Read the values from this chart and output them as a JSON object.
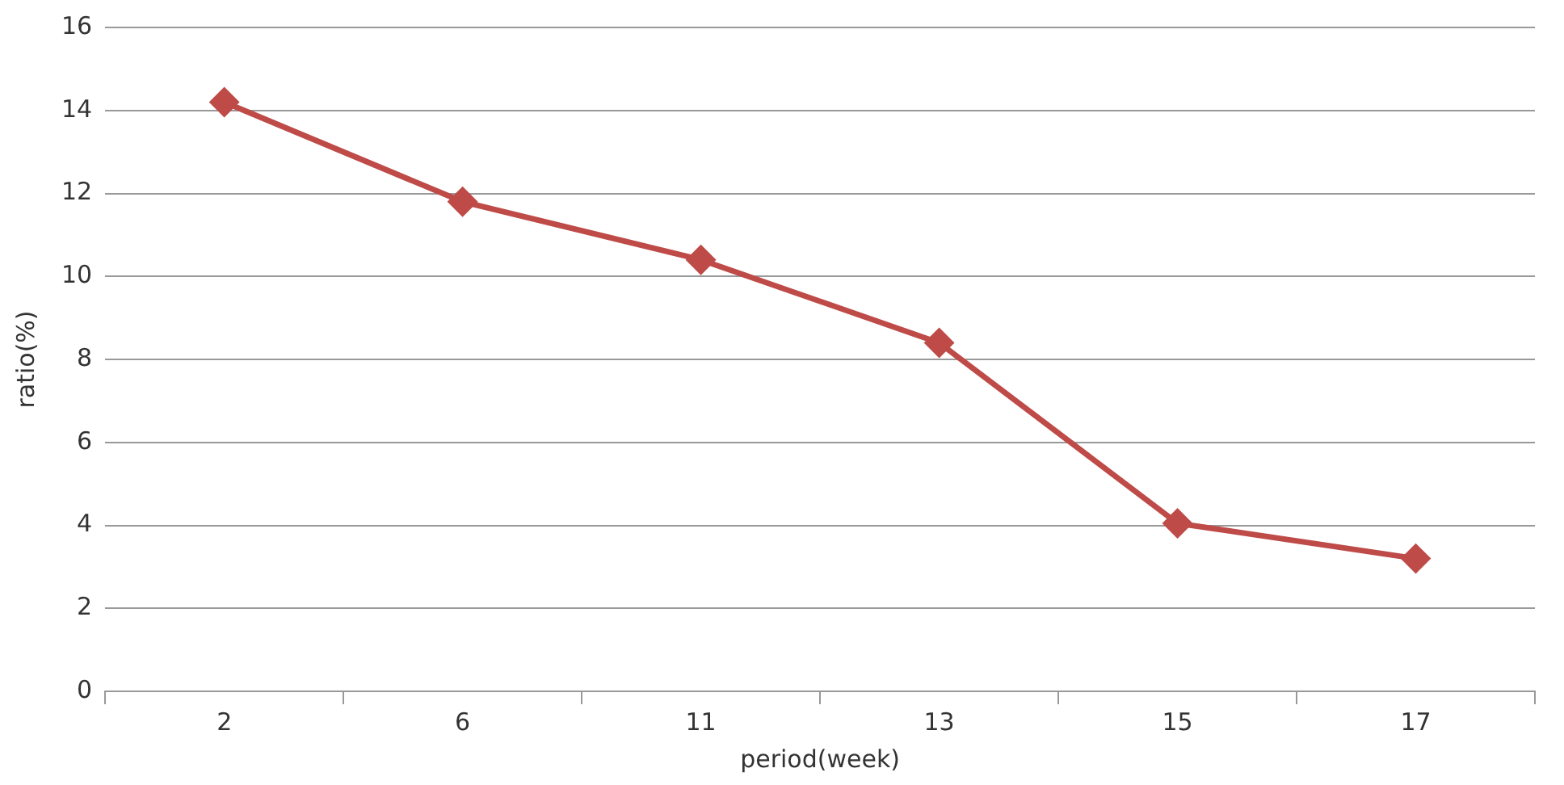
{
  "chart_data": {
    "type": "line",
    "xlabel": "period(week)",
    "ylabel": "ratio(%)",
    "categories": [
      "2",
      "6",
      "11",
      "13",
      "15",
      "17"
    ],
    "series": [
      {
        "color": "#be4b48",
        "values": [
          14.2,
          11.8,
          10.4,
          8.4,
          4.05,
          3.2
        ]
      }
    ],
    "ylim": [
      0,
      16
    ],
    "yticks": [
      0,
      2,
      4,
      6,
      8,
      10,
      12,
      14,
      16
    ],
    "grid": "y",
    "legend": false,
    "marker": "diamond",
    "line_style": "solid"
  }
}
